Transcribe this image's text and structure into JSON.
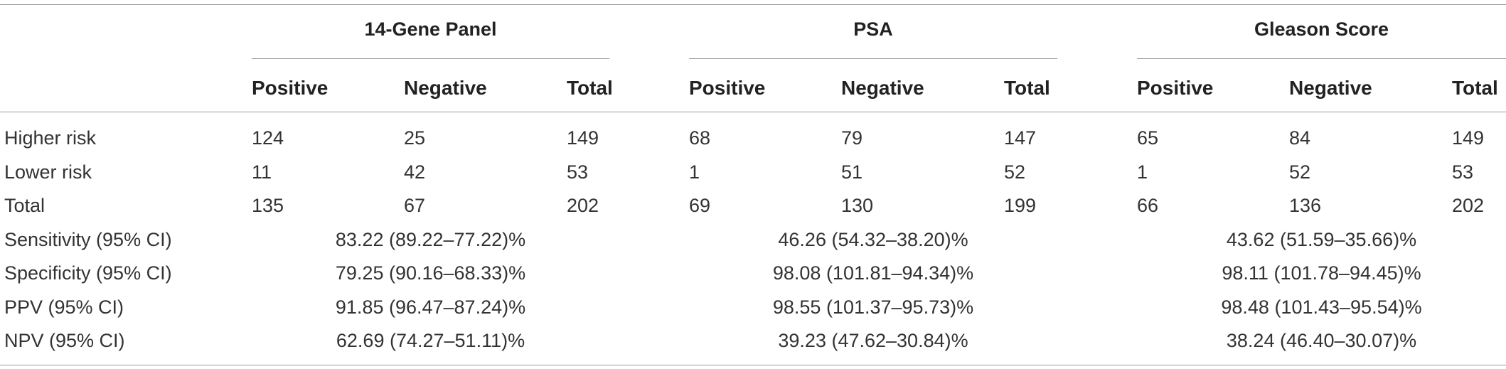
{
  "table": {
    "groups": [
      {
        "title": "14-Gene Panel"
      },
      {
        "title": "PSA"
      },
      {
        "title": "Gleason Score"
      }
    ],
    "subheaders": [
      "Positive",
      "Negative",
      "Total"
    ],
    "count_rows": [
      {
        "label": "Higher risk",
        "values": [
          [
            "124",
            "25",
            "149"
          ],
          [
            "68",
            "79",
            "147"
          ],
          [
            "65",
            "84",
            "149"
          ]
        ]
      },
      {
        "label": "Lower risk",
        "values": [
          [
            "11",
            "42",
            "53"
          ],
          [
            "1",
            "51",
            "52"
          ],
          [
            "1",
            "52",
            "53"
          ]
        ]
      },
      {
        "label": "Total",
        "values": [
          [
            "135",
            "67",
            "202"
          ],
          [
            "69",
            "130",
            "199"
          ],
          [
            "66",
            "136",
            "202"
          ]
        ]
      }
    ],
    "metric_rows": [
      {
        "label": "Sensitivity (95% CI)",
        "values": [
          "83.22 (89.22–77.22)%",
          "46.26 (54.32–38.20)%",
          "43.62 (51.59–35.66)%"
        ]
      },
      {
        "label": "Specificity (95% CI)",
        "values": [
          "79.25 (90.16–68.33)%",
          "98.08 (101.81–94.34)%",
          "98.11 (101.78–94.45)%"
        ]
      },
      {
        "label": "PPV (95% CI)",
        "values": [
          "91.85 (96.47–87.24)%",
          "98.55 (101.37–95.73)%",
          "98.48 (101.43–95.54)%"
        ]
      },
      {
        "label": "NPV (95% CI)",
        "values": [
          "62.69 (74.27–51.11)%",
          "39.23 (47.62–30.84)%",
          "38.24 (46.40–30.07)%"
        ]
      }
    ]
  }
}
